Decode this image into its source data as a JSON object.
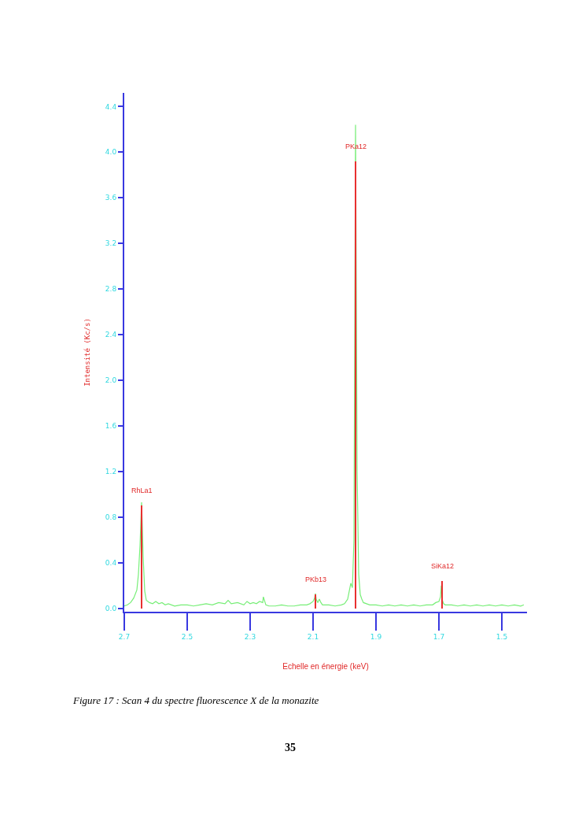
{
  "chart_data": {
    "type": "line",
    "xlabel": "Echelle en énergie (keV)",
    "ylabel": "Intensité (Kc/s)",
    "xlim": [
      2.7,
      1.42
    ],
    "xticks": [
      {
        "value": 2.7,
        "label": "2.7"
      },
      {
        "value": 2.5,
        "label": "2.5"
      },
      {
        "value": 2.3,
        "label": "2.3"
      },
      {
        "value": 2.1,
        "label": "2.1"
      },
      {
        "value": 1.9,
        "label": "1.9"
      },
      {
        "value": 1.7,
        "label": "1.7"
      },
      {
        "value": 1.5,
        "label": "1.5"
      }
    ],
    "ylim": [
      -0.03,
      4.52
    ],
    "yticks": [
      {
        "value": 0,
        "label": "0.0"
      },
      {
        "value": 0.4,
        "label": "0.4"
      },
      {
        "value": 0.8,
        "label": "0.8"
      },
      {
        "value": 1.2,
        "label": "1.2"
      },
      {
        "value": 1.6,
        "label": "1.6"
      },
      {
        "value": 2.0,
        "label": "2.0"
      },
      {
        "value": 2.4,
        "label": "2.4"
      },
      {
        "value": 2.8,
        "label": "2.8"
      },
      {
        "value": 3.2,
        "label": "3.2"
      },
      {
        "value": 3.6,
        "label": "3.6"
      },
      {
        "value": 4.0,
        "label": "4.0"
      },
      {
        "value": 4.4,
        "label": "4.4"
      }
    ],
    "marker": "none",
    "line_style": "solid",
    "series": [
      {
        "color": "#77ee77",
        "x": [
          2.7,
          2.69,
          2.68,
          2.67,
          2.66,
          2.655,
          2.65,
          2.645,
          2.64,
          2.635,
          2.63,
          2.62,
          2.61,
          2.6,
          2.59,
          2.58,
          2.57,
          2.56,
          2.54,
          2.52,
          2.5,
          2.48,
          2.46,
          2.44,
          2.42,
          2.4,
          2.38,
          2.37,
          2.36,
          2.34,
          2.32,
          2.31,
          2.3,
          2.29,
          2.28,
          2.27,
          2.26,
          2.258,
          2.25,
          2.24,
          2.22,
          2.2,
          2.18,
          2.16,
          2.14,
          2.12,
          2.11,
          2.1,
          2.095,
          2.0925,
          2.09,
          2.085,
          2.08,
          2.075,
          2.07,
          2.05,
          2.03,
          2.01,
          2.0,
          1.99,
          1.985,
          1.98,
          1.975,
          1.97,
          1.965,
          1.96,
          1.955,
          1.95,
          1.945,
          1.94,
          1.93,
          1.92,
          1.9,
          1.88,
          1.86,
          1.84,
          1.82,
          1.8,
          1.78,
          1.76,
          1.74,
          1.72,
          1.71,
          1.7,
          1.695,
          1.6925,
          1.69,
          1.685,
          1.68,
          1.66,
          1.64,
          1.62,
          1.6,
          1.58,
          1.56,
          1.54,
          1.52,
          1.5,
          1.48,
          1.46,
          1.44,
          1.43
        ],
        "values": [
          0.02,
          0.03,
          0.05,
          0.09,
          0.16,
          0.3,
          0.55,
          0.93,
          0.45,
          0.15,
          0.07,
          0.05,
          0.04,
          0.06,
          0.04,
          0.05,
          0.03,
          0.04,
          0.02,
          0.03,
          0.03,
          0.02,
          0.03,
          0.04,
          0.03,
          0.05,
          0.04,
          0.07,
          0.04,
          0.05,
          0.03,
          0.06,
          0.04,
          0.05,
          0.04,
          0.06,
          0.05,
          0.1,
          0.03,
          0.02,
          0.02,
          0.03,
          0.02,
          0.02,
          0.03,
          0.03,
          0.04,
          0.06,
          0.09,
          0.13,
          0.08,
          0.05,
          0.08,
          0.05,
          0.03,
          0.03,
          0.02,
          0.03,
          0.04,
          0.08,
          0.15,
          0.22,
          0.18,
          0.6,
          4.24,
          1.2,
          0.3,
          0.12,
          0.08,
          0.05,
          0.04,
          0.03,
          0.03,
          0.02,
          0.03,
          0.02,
          0.03,
          0.02,
          0.03,
          0.02,
          0.03,
          0.03,
          0.05,
          0.06,
          0.1,
          0.2,
          0.08,
          0.04,
          0.03,
          0.03,
          0.02,
          0.03,
          0.02,
          0.03,
          0.02,
          0.03,
          0.02,
          0.03,
          0.02,
          0.03,
          0.02,
          0.03
        ]
      },
      {
        "type": "bar",
        "color": "#e83030",
        "x": [
          2.645,
          2.0925,
          1.965,
          1.6895
        ],
        "values": [
          0.9,
          0.12,
          3.92,
          0.24
        ]
      }
    ],
    "annotations": [
      {
        "text": "RhLa1",
        "x": 2.645,
        "y": 0.9
      },
      {
        "text": "PKb13",
        "x": 2.0925,
        "y": 0.12
      },
      {
        "text": "PKa12",
        "x": 1.965,
        "y": 3.92
      },
      {
        "text": "SiKa12",
        "x": 1.6895,
        "y": 0.24
      },
      "Figure 17 : Scan 4 du spectre fluorescence X de la monazite",
      "35"
    ]
  }
}
